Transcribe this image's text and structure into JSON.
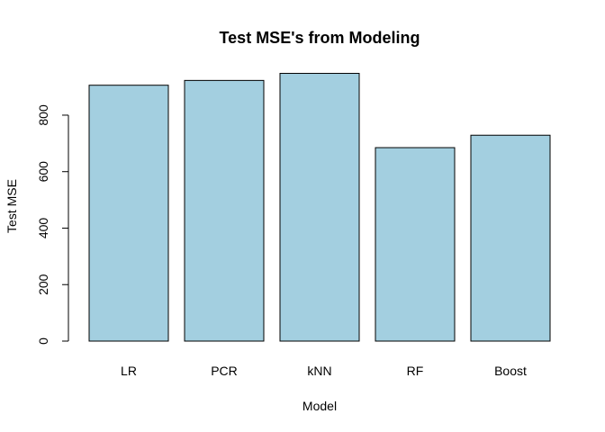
{
  "chart_data": {
    "type": "bar",
    "title": "Test MSE's from Modeling",
    "xlabel": "Model",
    "ylabel": "Test MSE",
    "categories": [
      "LR",
      "PCR",
      "kNN",
      "RF",
      "Boost"
    ],
    "values": [
      906,
      923,
      948,
      685,
      729
    ],
    "yticks": [
      0,
      200,
      400,
      600,
      800
    ],
    "ylim": [
      0,
      950
    ],
    "bar_color": "#a3cfe0",
    "grid": false
  }
}
